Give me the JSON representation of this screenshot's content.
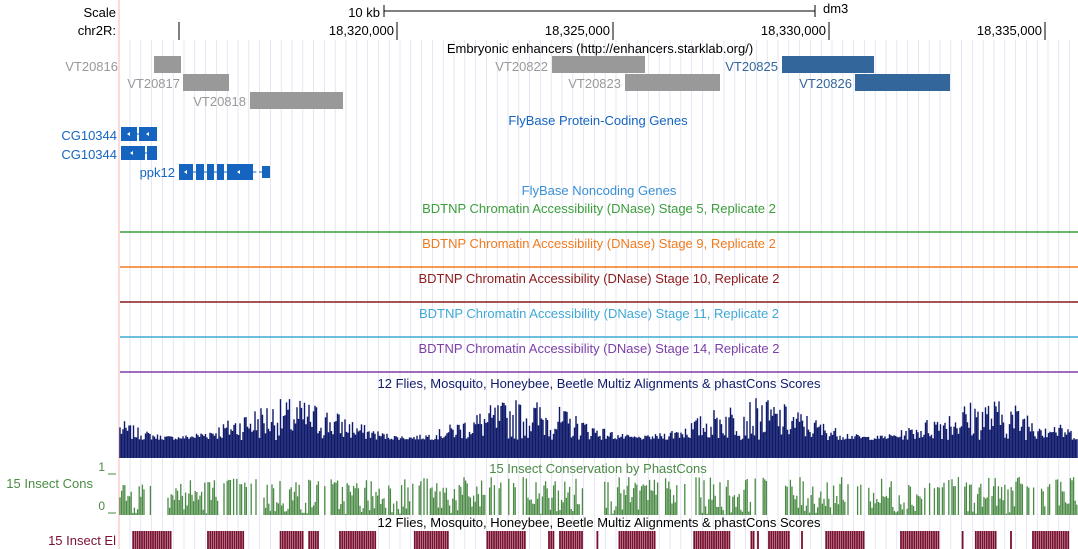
{
  "header": {
    "scale_label": "Scale",
    "scale_bar_label": "10 kb",
    "assembly": "dm3",
    "chrom_label": "chr2R:",
    "positions": [
      "18,320,000",
      "18,325,000",
      "18,330,000",
      "18,335,000"
    ]
  },
  "tracks": {
    "enhancers": {
      "title": "Embryonic enhancers (http://enhancers.starklab.org/)",
      "features": [
        "VT20816",
        "VT20817",
        "VT20818",
        "VT20822",
        "VT20823",
        "VT20825",
        "VT20826"
      ]
    },
    "genes": {
      "title": "FlyBase Protein-Coding Genes",
      "features": [
        "CG10344",
        "CG10344",
        "ppk12"
      ]
    },
    "noncoding": {
      "title": "FlyBase Noncoding Genes"
    },
    "dnase": [
      {
        "title": "BDTNP Chromatin Accessibility (DNase) Stage 5, Replicate 2",
        "color": "#3a9e3a"
      },
      {
        "title": "BDTNP Chromatin Accessibility (DNase) Stage 9, Replicate 2",
        "color": "#f07a1e"
      },
      {
        "title": "BDTNP Chromatin Accessibility (DNase) Stage 10, Replicate 2",
        "color": "#8c1a1a"
      },
      {
        "title": "BDTNP Chromatin Accessibility (DNase) Stage 11, Replicate 2",
        "color": "#3fa9d6"
      },
      {
        "title": "BDTNP Chromatin Accessibility (DNase) Stage 14, Replicate 2",
        "color": "#7b3fa6"
      }
    ],
    "multiz": {
      "title": "12 Flies, Mosquito, Honeybee, Beetle Multiz Alignments & phastCons Scores",
      "color": "#0f1a6b"
    },
    "cons": {
      "title": "15 Insect Conservation by PhastCons",
      "side_label": "15 Insect Cons",
      "ymax_label": "1",
      "ymin_label": "0",
      "color": "#4a8a44"
    },
    "elements": {
      "title": "12 Flies, Mosquito, Honeybee, Beetle Multiz Alignments & phastCons Scores",
      "side_label": "15 Insect El",
      "color": "#7a1030"
    }
  },
  "colors": {
    "enhancer_gray": "#999999",
    "enhancer_blue": "#33669a",
    "gene_blue": "#1565c0",
    "grid": "#d6d6f0",
    "left_guide": "#f4b4b4"
  }
}
